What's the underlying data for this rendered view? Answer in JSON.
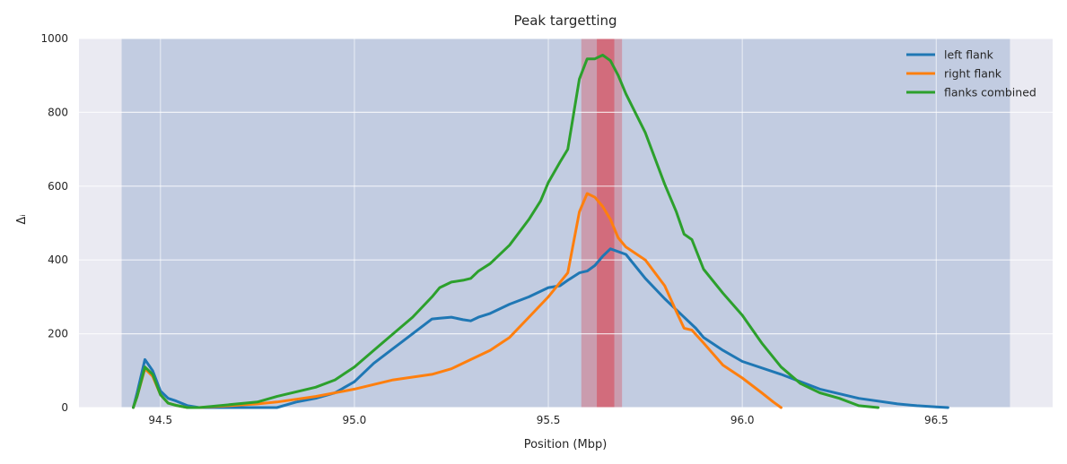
{
  "chart_data": {
    "type": "line",
    "title": "Peak targetting",
    "xlabel": "Position (Mbp)",
    "ylabel": "Δᵢ",
    "xlim": [
      94.29,
      96.8
    ],
    "ylim": [
      0,
      1000
    ],
    "xticks": [
      94.5,
      95.0,
      95.5,
      96.0,
      96.5
    ],
    "xtick_labels": [
      "94.5",
      "95.0",
      "95.5",
      "96.0",
      "96.5"
    ],
    "yticks": [
      0,
      200,
      400,
      600,
      800,
      1000
    ],
    "ytick_labels": [
      "0",
      "200",
      "400",
      "600",
      "800",
      "1000"
    ],
    "grid": true,
    "legend_position": "top-right",
    "shaded_regions": [
      {
        "x": [
          94.4,
          96.69
        ],
        "color": "#4c72b0",
        "opacity": 0.25
      },
      {
        "x": [
          95.585,
          95.69
        ],
        "color": "#e0202a",
        "opacity": 0.28
      },
      {
        "x": [
          95.625,
          95.67
        ],
        "color": "#e0202a",
        "opacity": 0.38
      }
    ],
    "series": [
      {
        "name": "left flank",
        "color": "#1f77b4",
        "x": [
          94.43,
          94.44,
          94.46,
          94.48,
          94.5,
          94.52,
          94.54,
          94.57,
          94.6,
          94.8,
          94.85,
          94.9,
          94.95,
          95.0,
          95.05,
          95.1,
          95.15,
          95.2,
          95.22,
          95.25,
          95.28,
          95.3,
          95.32,
          95.35,
          95.4,
          95.45,
          95.5,
          95.53,
          95.55,
          95.58,
          95.6,
          95.62,
          95.64,
          95.66,
          95.7,
          95.75,
          95.8,
          95.85,
          95.88,
          95.9,
          95.95,
          96.0,
          96.1,
          96.2,
          96.3,
          96.4,
          96.45,
          96.5,
          96.53
        ],
        "y": [
          0,
          40,
          130,
          100,
          45,
          25,
          18,
          5,
          0,
          0,
          15,
          25,
          40,
          70,
          120,
          160,
          200,
          240,
          242,
          245,
          238,
          235,
          245,
          255,
          280,
          300,
          325,
          330,
          345,
          365,
          370,
          385,
          410,
          430,
          415,
          350,
          295,
          245,
          215,
          190,
          155,
          125,
          90,
          50,
          25,
          10,
          5,
          2,
          0
        ]
      },
      {
        "name": "right flank",
        "color": "#ff7f0e",
        "x": [
          94.43,
          94.44,
          94.46,
          94.48,
          94.5,
          94.52,
          94.54,
          94.57,
          94.6,
          94.75,
          94.8,
          94.9,
          95.0,
          95.1,
          95.2,
          95.25,
          95.3,
          95.35,
          95.4,
          95.45,
          95.5,
          95.55,
          95.58,
          95.6,
          95.62,
          95.64,
          95.66,
          95.68,
          95.7,
          95.75,
          95.8,
          95.83,
          95.85,
          95.87,
          95.9,
          95.95,
          96.0,
          96.05,
          96.08,
          96.1
        ],
        "y": [
          0,
          30,
          105,
          85,
          35,
          12,
          6,
          0,
          0,
          10,
          15,
          30,
          50,
          75,
          90,
          105,
          130,
          155,
          190,
          245,
          300,
          365,
          530,
          580,
          570,
          545,
          510,
          460,
          435,
          400,
          330,
          260,
          215,
          210,
          175,
          115,
          80,
          40,
          15,
          0
        ]
      },
      {
        "name": "flanks combined",
        "color": "#2ca02c",
        "x": [
          94.43,
          94.44,
          94.46,
          94.48,
          94.5,
          94.52,
          94.54,
          94.57,
          94.6,
          94.75,
          94.8,
          94.9,
          94.95,
          95.0,
          95.05,
          95.1,
          95.15,
          95.2,
          95.22,
          95.25,
          95.28,
          95.3,
          95.32,
          95.35,
          95.4,
          95.45,
          95.48,
          95.5,
          95.53,
          95.55,
          95.58,
          95.6,
          95.62,
          95.64,
          95.66,
          95.68,
          95.7,
          95.75,
          95.8,
          95.83,
          95.85,
          95.87,
          95.9,
          95.95,
          96.0,
          96.05,
          96.1,
          96.15,
          96.2,
          96.25,
          96.3,
          96.35
        ],
        "y": [
          0,
          30,
          110,
          90,
          35,
          12,
          6,
          0,
          0,
          15,
          30,
          55,
          75,
          110,
          155,
          200,
          245,
          300,
          325,
          340,
          345,
          350,
          370,
          390,
          440,
          510,
          560,
          610,
          665,
          700,
          890,
          945,
          945,
          955,
          940,
          900,
          850,
          745,
          605,
          530,
          470,
          455,
          375,
          310,
          250,
          175,
          110,
          65,
          40,
          25,
          5,
          0
        ]
      }
    ]
  }
}
